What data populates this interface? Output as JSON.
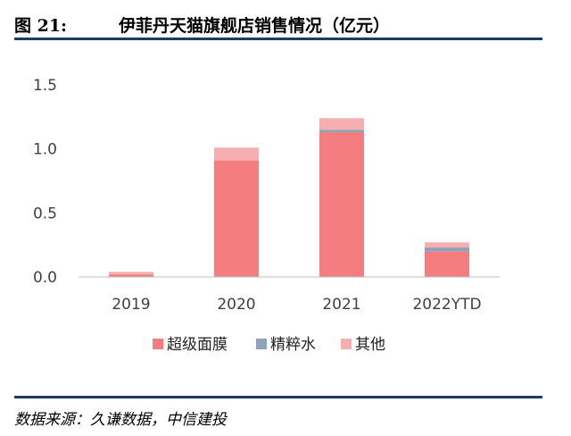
{
  "header": {
    "figure_number": "图 21:",
    "title": "伊菲丹天猫旗舰店销售情况（亿元）"
  },
  "footer": {
    "source": "数据来源：久谦数据，中信建投"
  },
  "colors": {
    "rule": "#1f3a66",
    "series_1": "#F47D80",
    "series_2": "#8CA3B9",
    "series_3": "#F7AEAE"
  },
  "chart_data": {
    "type": "bar",
    "stacked": true,
    "categories": [
      "2019",
      "2020",
      "2021",
      "2022YTD"
    ],
    "series": [
      {
        "name": "超级面膜",
        "color": "#F47D80",
        "values": [
          0.02,
          0.91,
          1.13,
          0.2
        ]
      },
      {
        "name": "精粹水",
        "color": "#8CA3B9",
        "values": [
          0.0,
          0.0,
          0.02,
          0.03
        ]
      },
      {
        "name": "其他",
        "color": "#F7AEAE",
        "values": [
          0.02,
          0.1,
          0.09,
          0.04
        ]
      }
    ],
    "y_ticks": [
      "0.0",
      "0.5",
      "1.0",
      "1.5"
    ],
    "y_tick_values": [
      0,
      0.5,
      1.0,
      1.5
    ],
    "ylim": [
      0,
      1.5
    ],
    "grid": false,
    "legend_position": "bottom"
  }
}
